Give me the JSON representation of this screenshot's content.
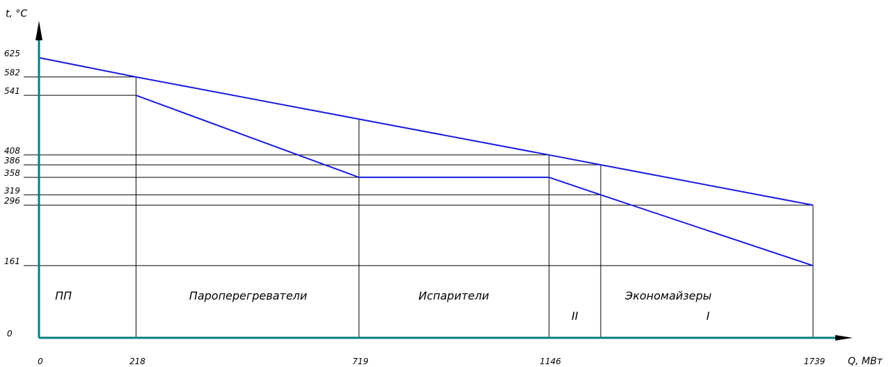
{
  "chart_data": {
    "type": "line",
    "title": "",
    "xlabel": "Q, МВт",
    "ylabel": "t, °C",
    "xlim": [
      0,
      1739
    ],
    "ylim": [
      0,
      625
    ],
    "y_ticks": [
      {
        "value": 625,
        "label": "625"
      },
      {
        "value": 582,
        "label": "582"
      },
      {
        "value": 541,
        "label": "541"
      },
      {
        "value": 408,
        "label": "408"
      },
      {
        "value": 386,
        "label": "386"
      },
      {
        "value": 358,
        "label": "358"
      },
      {
        "value": 319,
        "label": "319"
      },
      {
        "value": 296,
        "label": "296"
      },
      {
        "value": 161,
        "label": "161"
      },
      {
        "value": 0,
        "label": "0"
      }
    ],
    "x_ticks": [
      {
        "value": 0,
        "label": "0"
      },
      {
        "value": 218,
        "label": "218"
      },
      {
        "value": 719,
        "label": "719"
      },
      {
        "value": 1146,
        "label": "1146"
      },
      {
        "value": 1739,
        "label": "1739"
      }
    ],
    "h_gridlines": [
      {
        "value": 582,
        "x_to": 218
      },
      {
        "value": 541,
        "x_to": 218
      },
      {
        "value": 408,
        "x_to": 1146
      },
      {
        "value": 386,
        "x_to": 1262
      },
      {
        "value": 358,
        "x_to": 719
      },
      {
        "value": 319,
        "x_to": 1262
      },
      {
        "value": 296,
        "x_to": 1739
      },
      {
        "value": 161,
        "x_to": 1739
      }
    ],
    "v_gridlines": [
      {
        "x": 218,
        "y_to": 582
      },
      {
        "x": 719,
        "y_to": 488
      },
      {
        "x": 1146,
        "y_to": 408
      },
      {
        "x": 1262,
        "y_to": 386
      },
      {
        "x": 1739,
        "y_to": 296
      }
    ],
    "series": [
      {
        "color": "#1a1ae0",
        "points": [
          [
            0,
            625
          ],
          [
            218,
            582
          ],
          [
            719,
            488
          ],
          [
            1146,
            408
          ],
          [
            1262,
            386
          ],
          [
            1739,
            296
          ]
        ]
      },
      {
        "color": "#1a1ae0",
        "points": [
          [
            218,
            541
          ],
          [
            719,
            358
          ],
          [
            1146,
            358
          ],
          [
            1262,
            319
          ],
          [
            1739,
            161
          ]
        ]
      }
    ],
    "zone_labels": [
      {
        "text": "ПП",
        "x": 55,
        "y": 85
      },
      {
        "text": "Пароперегреватели",
        "x": 470,
        "y": 85
      },
      {
        "text": "Испарители",
        "x": 932,
        "y": 85
      },
      {
        "text": "Экономайзеры",
        "x": 1414,
        "y": 85
      },
      {
        "text": "II",
        "x": 1204,
        "y": 40
      },
      {
        "text": "I",
        "x": 1503,
        "y": 40
      }
    ],
    "colors": {
      "axis": "#008080",
      "grid": "#000000",
      "series": "#1a1ae0"
    }
  }
}
